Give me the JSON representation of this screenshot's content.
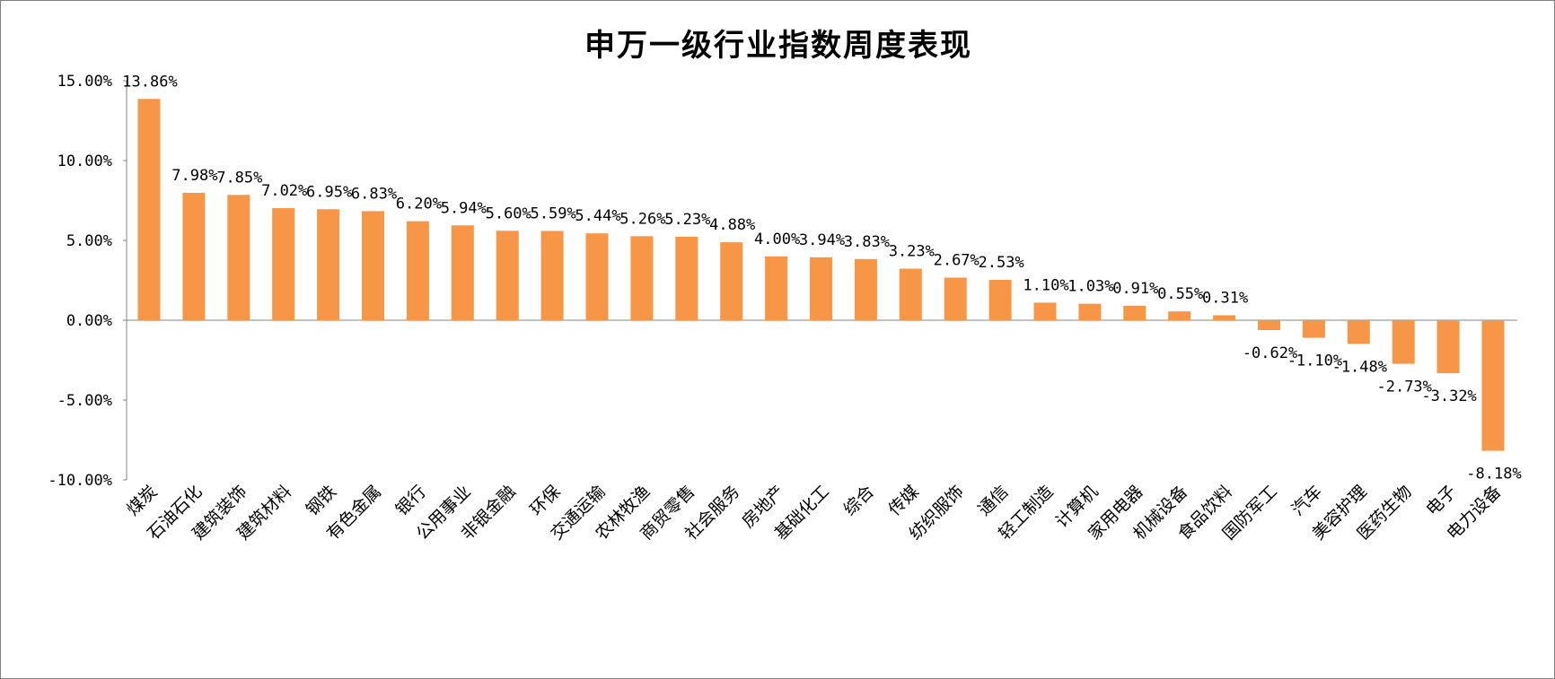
{
  "chart_data": {
    "type": "bar",
    "title": "申万一级行业指数周度表现",
    "xlabel": "",
    "ylabel": "",
    "ylim": [
      -10,
      15
    ],
    "yticks": [
      "15.00%",
      "10.00%",
      "5.00%",
      "0.00%",
      "-5.00%",
      "-10.00%"
    ],
    "ytick_values": [
      15,
      10,
      5,
      0,
      -5,
      -10
    ],
    "grid": false,
    "legend": "none",
    "bar_color": "#F79646",
    "categories": [
      "煤炭",
      "石油石化",
      "建筑装饰",
      "建筑材料",
      "钢铁",
      "有色金属",
      "银行",
      "公用事业",
      "非银金融",
      "环保",
      "交通运输",
      "农林牧渔",
      "商贸零售",
      "社会服务",
      "房地产",
      "基础化工",
      "综合",
      "传媒",
      "纺织服饰",
      "通信",
      "轻工制造",
      "计算机",
      "家用电器",
      "机械设备",
      "食品饮料",
      "国防军工",
      "汽车",
      "美容护理",
      "医药生物",
      "电子",
      "电力设备"
    ],
    "values": [
      13.86,
      7.98,
      7.85,
      7.02,
      6.95,
      6.83,
      6.2,
      5.94,
      5.6,
      5.59,
      5.44,
      5.26,
      5.23,
      4.88,
      4.0,
      3.94,
      3.83,
      3.23,
      2.67,
      2.53,
      1.1,
      1.03,
      0.91,
      0.55,
      0.31,
      -0.62,
      -1.1,
      -1.48,
      -2.73,
      -3.32,
      -8.18
    ],
    "data_labels": [
      "13.86%",
      "7.98%",
      "7.85%",
      "7.02%",
      "6.95%",
      "6.83%",
      "6.20%",
      "5.94%",
      "5.60%",
      "5.59%",
      "5.44%",
      "5.26%",
      "5.23%",
      "4.88%",
      "4.00%",
      "3.94%",
      "3.83%",
      "3.23%",
      "2.67%",
      "2.53%",
      "1.10%",
      "1.03%",
      "0.91%",
      "0.55%",
      "0.31%",
      "-0.62%",
      "-1.10%",
      "-1.48%",
      "-2.73%",
      "-3.32%",
      "-8.18%"
    ]
  }
}
